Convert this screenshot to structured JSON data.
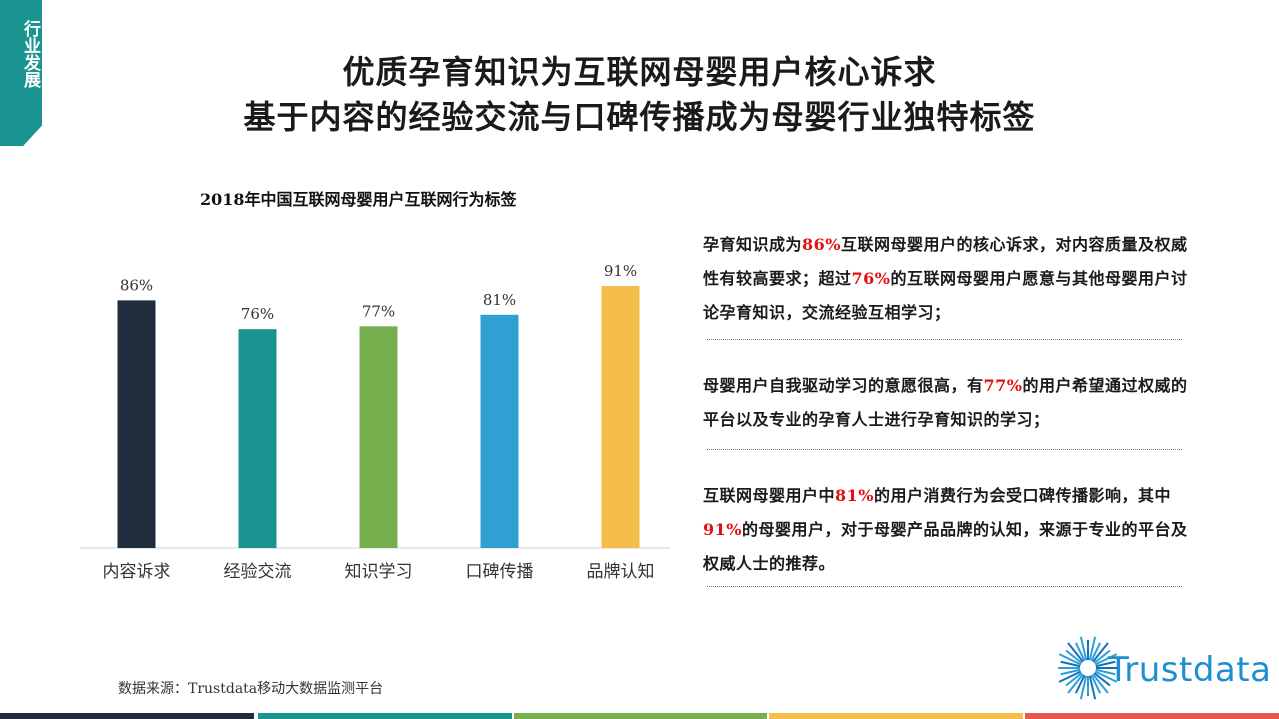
{
  "side_tag": "行业发展",
  "header": {
    "title_line1": "优质孕育知识为互联网母婴用户核心诉求",
    "title_line2": "基于内容的经验交流与口碑传播成为母婴行业独特标签"
  },
  "chart_data": {
    "type": "bar",
    "title": "2018年中国互联网母婴用户互联网行为标签",
    "categories": [
      "内容诉求",
      "经验交流",
      "知识学习",
      "口碑传播",
      "品牌认知"
    ],
    "values": [
      86,
      76,
      77,
      81,
      91
    ],
    "value_labels": [
      "86%",
      "76%",
      "77%",
      "81%",
      "91%"
    ],
    "colors": [
      "#1f2d3d",
      "#1a9490",
      "#76b04e",
      "#2f9fd4",
      "#f5be4a"
    ],
    "ylim": [
      0,
      100
    ],
    "grid": false,
    "xlabel": "",
    "ylabel": ""
  },
  "notes": [
    {
      "parts": [
        {
          "t": "孕育知识成为"
        },
        {
          "t": "86%",
          "hl": true
        },
        {
          "t": "互联网母婴用户的核心诉求，对内容质量及权威性有较高要求；超过"
        },
        {
          "t": "76%",
          "hl": true
        },
        {
          "t": "的互联网母婴用户愿意与其他母婴用户讨论孕育知识，交流经验互相学习；"
        }
      ]
    },
    {
      "parts": [
        {
          "t": "母婴用户自我驱动学习的意愿很高，有"
        },
        {
          "t": "77%",
          "hl": true
        },
        {
          "t": "的用户希望通过权威的平台以及专业的孕育人士进行孕育知识的学习；"
        }
      ]
    },
    {
      "parts": [
        {
          "t": "互联网母婴用户中"
        },
        {
          "t": "81%",
          "hl": true
        },
        {
          "t": "的用户消费行为会受口碑传播影响，其中"
        },
        {
          "t": "91%",
          "hl": true
        },
        {
          "t": "的母婴用户，对于母婴产品品牌的认知，来源于专业的平台及权威人士的推荐。"
        }
      ]
    }
  ],
  "source": "数据来源：Trustdata移动大数据监测平台",
  "logo": {
    "text": "Trustdata",
    "icon": "starburst-icon"
  },
  "bottom_bar_colors": [
    "#1f2d3d",
    "#1a9490",
    "#76b04e",
    "#f5be4a",
    "#e8584a"
  ]
}
